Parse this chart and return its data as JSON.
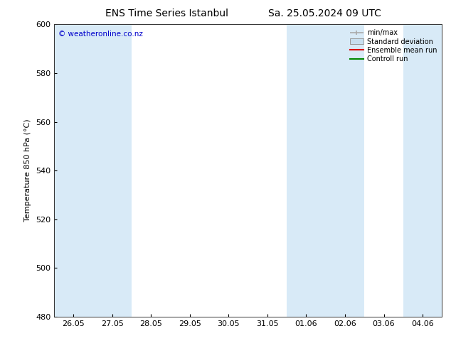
{
  "title_left": "ENS Time Series Istanbul",
  "title_right": "Sa. 25.05.2024 09 UTC",
  "ylabel": "Temperature 850 hPa (°C)",
  "ylim": [
    480,
    600
  ],
  "yticks": [
    480,
    500,
    520,
    540,
    560,
    580,
    600
  ],
  "xtick_labels": [
    "26.05",
    "27.05",
    "28.05",
    "29.05",
    "30.05",
    "31.05",
    "01.06",
    "02.06",
    "03.06",
    "04.06"
  ],
  "shaded_positions": [
    0,
    1,
    6,
    7,
    9
  ],
  "watermark": "© weatheronline.co.nz",
  "watermark_color": "#0000cc",
  "background_color": "#ffffff",
  "plot_bg_color": "#ffffff",
  "band_color": "#d8eaf7",
  "legend_minmax_color": "#aaaaaa",
  "legend_std_color": "#c8dff0",
  "legend_std_edge": "#999999",
  "legend_mean_color": "#dd0000",
  "legend_ctrl_color": "#008800",
  "title_fontsize": 10,
  "ylabel_fontsize": 8,
  "tick_fontsize": 8,
  "watermark_fontsize": 7.5
}
